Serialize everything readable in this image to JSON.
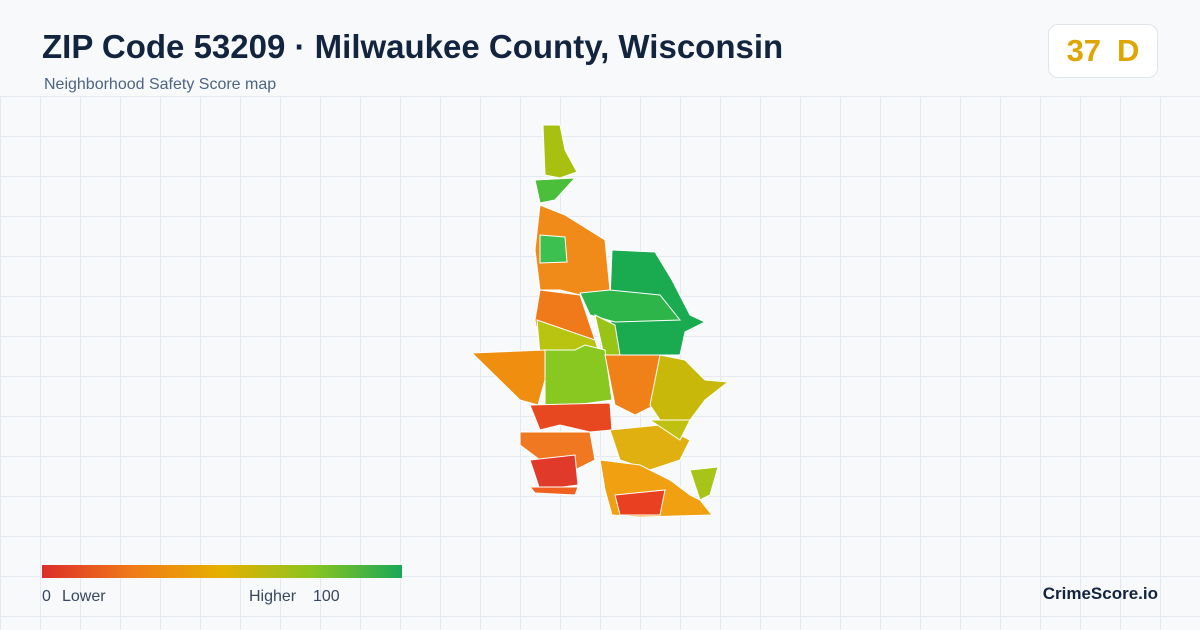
{
  "header": {
    "title": "ZIP Code 53209 · Milwaukee County, Wisconsin",
    "subtitle": "Neighborhood Safety Score map"
  },
  "score": {
    "value": 37,
    "grade": "D"
  },
  "legend": {
    "min": 0,
    "min_label": "Lower",
    "max_label": "Higher",
    "max": 100
  },
  "footer": {
    "brand": "CrimeScore.io"
  }
}
